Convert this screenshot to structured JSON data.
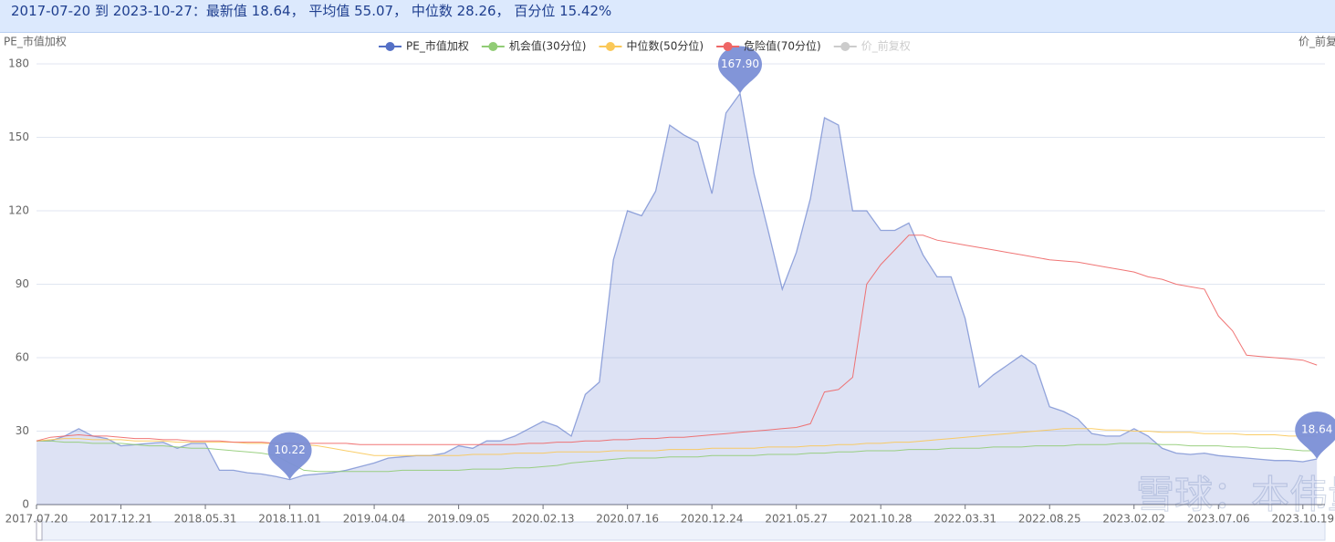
{
  "header": "2017-07-20 到 2023-10-27：最新值 18.64， 平均值 55.07， 中位数 28.26， 百分位 15.42%",
  "chart_data": {
    "type": "line",
    "y_label": "PE_市值加权",
    "y2_label": "价_前复权",
    "watermark": "雪球：本伟量投",
    "categories": [
      "2017.07.20",
      null,
      null,
      null,
      null,
      null,
      "2017.12.21",
      null,
      null,
      null,
      null,
      null,
      "2018.05.31",
      null,
      null,
      null,
      null,
      null,
      "2018.11.01",
      null,
      null,
      null,
      null,
      null,
      "2019.04.04",
      null,
      null,
      null,
      null,
      null,
      "2019.09.05",
      null,
      null,
      null,
      null,
      null,
      "2020.02.13",
      null,
      null,
      null,
      null,
      null,
      "2020.07.16",
      null,
      null,
      null,
      null,
      null,
      "2020.12.24",
      null,
      null,
      null,
      null,
      null,
      "2021.05.27",
      null,
      null,
      null,
      null,
      null,
      "2021.10.28",
      null,
      null,
      null,
      null,
      null,
      "2022.03.31",
      null,
      null,
      null,
      null,
      null,
      "2022.08.25",
      null,
      null,
      null,
      null,
      null,
      "2023.02.02",
      null,
      null,
      null,
      null,
      null,
      "2023.07.06",
      null,
      null,
      null,
      null,
      null,
      "2023.10.19",
      null
    ],
    "series": [
      {
        "name": "PE_市值加权",
        "color": "#5470c6",
        "area": true,
        "values": [
          26,
          26,
          28,
          31,
          28,
          27,
          24,
          24.5,
          25,
          25.5,
          23,
          25,
          25,
          14,
          14,
          13,
          12.5,
          11.5,
          10.22,
          12,
          12.5,
          13,
          14,
          15.5,
          17,
          19,
          19.5,
          20,
          20,
          21,
          24,
          23,
          26,
          26,
          28,
          31,
          34,
          32,
          28,
          45,
          50,
          100,
          120,
          118,
          128,
          155,
          151,
          148,
          127,
          160,
          167.9,
          135,
          112,
          88,
          103,
          125,
          158,
          155,
          120,
          120,
          112,
          112,
          115,
          102,
          93,
          93,
          76,
          48,
          53,
          57,
          61,
          57,
          40,
          38,
          35,
          29,
          28,
          28,
          31,
          28,
          23,
          21,
          20.5,
          21,
          20,
          19.5,
          19,
          18.5,
          18,
          18,
          17.5,
          18.64
        ]
      },
      {
        "name": "机会值(30分位)",
        "color": "#91cc75",
        "values": [
          26,
          26,
          25.5,
          25.5,
          25,
          25,
          25,
          24.5,
          24,
          24,
          23.5,
          23,
          23,
          22.5,
          22,
          21.5,
          21,
          20,
          17,
          14,
          13.5,
          13.5,
          13.5,
          13.5,
          13.5,
          13.5,
          14,
          14,
          14,
          14,
          14,
          14.5,
          14.5,
          14.5,
          15,
          15,
          15.5,
          16,
          17,
          17.5,
          18,
          18.5,
          19,
          19,
          19,
          19.5,
          19.5,
          19.5,
          20,
          20,
          20,
          20,
          20.5,
          20.5,
          20.5,
          21,
          21,
          21.5,
          21.5,
          22,
          22,
          22,
          22.5,
          22.5,
          22.5,
          23,
          23,
          23,
          23.5,
          23.5,
          23.5,
          24,
          24,
          24,
          24.5,
          24.5,
          24.5,
          25,
          25,
          25,
          24.5,
          24.5,
          24,
          24,
          24,
          23.5,
          23.5,
          23,
          23,
          22.5,
          22,
          22
        ]
      },
      {
        "name": "中位数(50分位)",
        "color": "#fac858",
        "values": [
          26,
          26.5,
          27,
          27,
          26.5,
          26.5,
          26.5,
          26,
          26,
          26,
          25.5,
          25.5,
          25.5,
          25.5,
          25.5,
          25,
          25,
          25,
          25,
          24.5,
          24,
          23,
          22,
          21,
          20,
          20,
          20,
          20,
          20,
          20,
          20,
          20.5,
          20.5,
          20.5,
          21,
          21,
          21,
          21.5,
          21.5,
          21.5,
          21.5,
          22,
          22,
          22,
          22,
          22.5,
          22.5,
          22.5,
          23,
          23,
          23,
          23,
          23.5,
          23.5,
          23.5,
          24,
          24,
          24.5,
          24.5,
          25,
          25,
          25.5,
          25.5,
          26,
          26.5,
          27,
          27.5,
          28,
          28.5,
          29,
          29.5,
          30,
          30.5,
          31,
          31,
          31,
          30.5,
          30.5,
          30,
          30,
          29.5,
          29.5,
          29.5,
          29,
          29,
          29,
          28.5,
          28.5,
          28.5,
          28,
          28,
          28
        ]
      },
      {
        "name": "危险值(70分位)",
        "color": "#ee6666",
        "values": [
          26,
          27.5,
          28,
          28.5,
          28,
          28,
          27.5,
          27,
          27,
          26.5,
          26.5,
          26,
          26,
          26,
          25.5,
          25.5,
          25.5,
          25,
          25,
          25,
          25,
          25,
          25,
          24.5,
          24.5,
          24.5,
          24.5,
          24.5,
          24.5,
          24.5,
          24.5,
          24.5,
          24.5,
          24.5,
          24.5,
          25,
          25,
          25.5,
          25.5,
          26,
          26,
          26.5,
          26.5,
          27,
          27,
          27.5,
          27.5,
          28,
          28.5,
          29,
          29.5,
          30,
          30.5,
          31,
          31.5,
          33,
          46,
          47,
          52,
          90,
          98,
          104,
          110,
          110,
          108,
          107,
          106,
          105,
          104,
          103,
          102,
          101,
          100,
          99.5,
          99,
          98,
          97,
          96,
          95,
          93,
          92,
          90,
          89,
          88,
          77,
          71,
          61,
          60.5,
          60,
          59.5,
          59,
          57
        ]
      }
    ],
    "hidden_series": {
      "name": "价_前复权",
      "color": "#cccccc"
    },
    "markers": [
      {
        "label": "167.90",
        "value": 167.9
      },
      {
        "label": "10.22",
        "value": 10.22
      },
      {
        "label": "18.64",
        "value": 18.64
      }
    ],
    "ylim": [
      0,
      180
    ],
    "yticks": [
      0,
      30,
      60,
      90,
      120,
      150,
      180
    ],
    "grid": true
  }
}
